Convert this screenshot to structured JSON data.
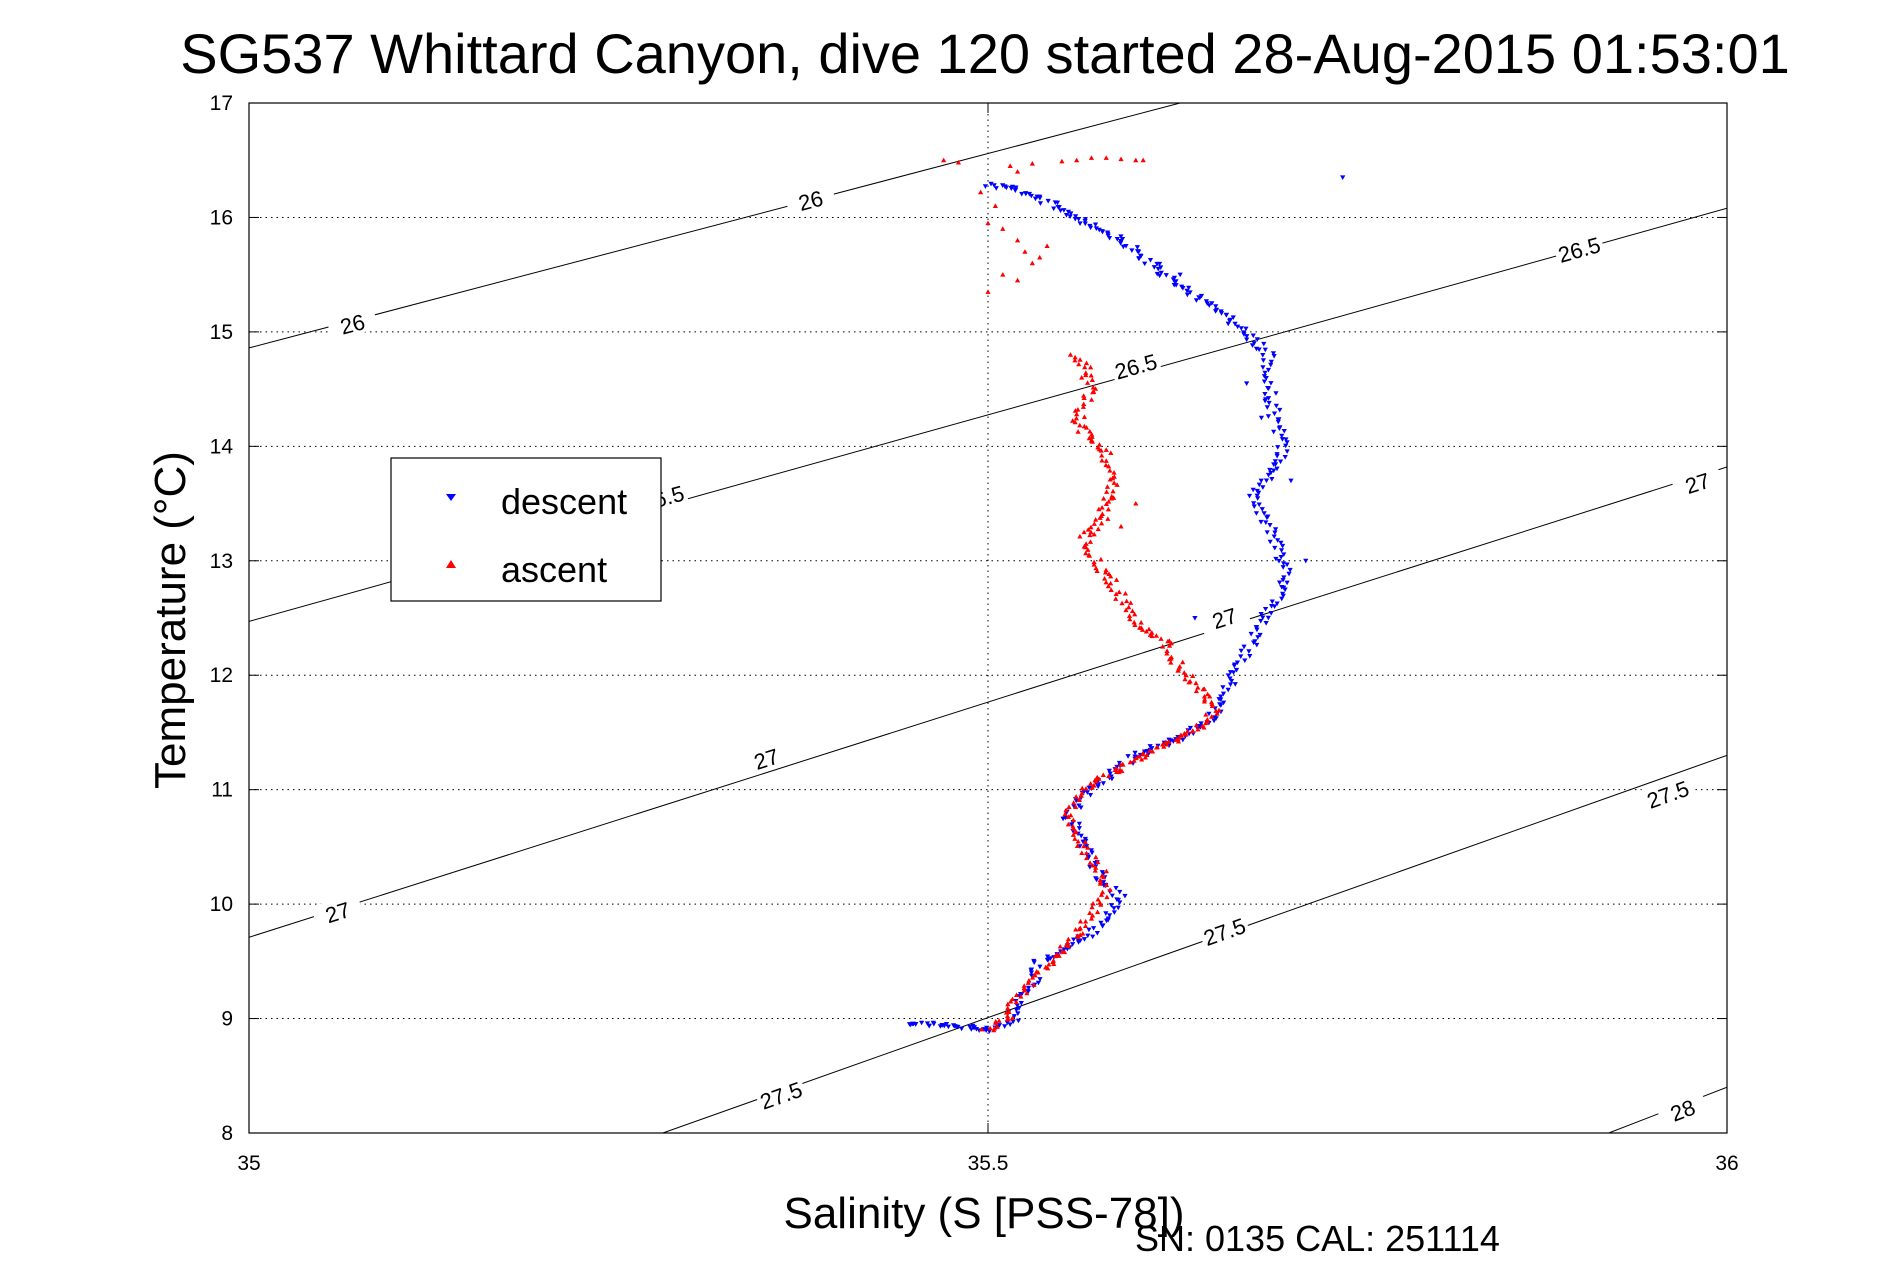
{
  "chart_data": {
    "type": "scatter",
    "title": "SG537 Whittard Canyon, dive 120 started 28-Aug-2015 01:53:01",
    "xlabel": "Salinity (S [PSS-78])",
    "ylabel": "Temperature (°C)",
    "xlim": [
      35,
      36
    ],
    "ylim": [
      8,
      17
    ],
    "x_ticks": [
      "35",
      "35.5",
      "36"
    ],
    "y_ticks": [
      "8",
      "9",
      "10",
      "11",
      "12",
      "13",
      "14",
      "15",
      "16",
      "17"
    ],
    "grid": true,
    "legend_position": "left-middle",
    "footer": "SN: 0135  CAL: 251114",
    "contours": [
      {
        "label": "26",
        "x": [
          35.0,
          35.63
        ],
        "y": [
          14.86,
          17.0
        ],
        "labels_at": [
          [
            35.07,
            15.07
          ],
          [
            35.38,
            16.15
          ]
        ]
      },
      {
        "label": "26.5",
        "x": [
          35.0,
          36.0
        ],
        "y": [
          12.47,
          16.08
        ],
        "labels_at": [
          [
            35.28,
            13.55
          ],
          [
            35.6,
            14.7
          ],
          [
            35.9,
            15.72
          ]
        ]
      },
      {
        "label": "27",
        "x": [
          35.0,
          36.0
        ],
        "y": [
          9.71,
          13.82
        ],
        "labels_at": [
          [
            35.06,
            9.93
          ],
          [
            35.35,
            11.27
          ],
          [
            35.66,
            12.5
          ],
          [
            35.98,
            13.68
          ]
        ]
      },
      {
        "label": "27.5",
        "x": [
          35.28,
          36.0
        ],
        "y": [
          8.0,
          11.3
        ],
        "labels_at": [
          [
            35.36,
            8.33
          ],
          [
            35.66,
            9.76
          ],
          [
            35.96,
            10.96
          ]
        ]
      },
      {
        "label": "28",
        "x": [
          35.92,
          36.0
        ],
        "y": [
          8.0,
          8.4
        ],
        "labels_at": [
          [
            35.97,
            8.2
          ]
        ]
      }
    ],
    "series": [
      {
        "name": "descent",
        "color": "#0000ff",
        "marker": "triangle-down",
        "anchors": [
          [
            35.445,
            8.96
          ],
          [
            35.46,
            8.95
          ],
          [
            35.48,
            8.93
          ],
          [
            35.5,
            8.9
          ],
          [
            35.515,
            8.95
          ],
          [
            35.52,
            9.15
          ],
          [
            35.53,
            9.3
          ],
          [
            35.535,
            9.5
          ],
          [
            35.55,
            9.6
          ],
          [
            35.57,
            9.75
          ],
          [
            35.58,
            9.88
          ],
          [
            35.59,
            10.05
          ],
          [
            35.575,
            10.25
          ],
          [
            35.565,
            10.5
          ],
          [
            35.555,
            10.75
          ],
          [
            35.565,
            10.95
          ],
          [
            35.58,
            11.1
          ],
          [
            35.6,
            11.3
          ],
          [
            35.63,
            11.45
          ],
          [
            35.65,
            11.6
          ],
          [
            35.66,
            11.78
          ],
          [
            35.665,
            11.95
          ],
          [
            35.67,
            12.1
          ],
          [
            35.68,
            12.3
          ],
          [
            35.69,
            12.55
          ],
          [
            35.7,
            12.8
          ],
          [
            35.7,
            13.0
          ],
          [
            35.69,
            13.3
          ],
          [
            35.68,
            13.6
          ],
          [
            35.7,
            13.9
          ],
          [
            35.695,
            14.2
          ],
          [
            35.69,
            14.5
          ],
          [
            35.69,
            14.8
          ],
          [
            35.665,
            15.1
          ],
          [
            35.62,
            15.5
          ],
          [
            35.59,
            15.8
          ],
          [
            35.56,
            16.0
          ],
          [
            35.53,
            16.2
          ],
          [
            35.515,
            16.26
          ],
          [
            35.5,
            16.29
          ]
        ],
        "extra": [
          [
            35.74,
            16.35
          ],
          [
            35.63,
            15.5
          ],
          [
            35.715,
            13.0
          ],
          [
            35.705,
            13.7
          ],
          [
            35.685,
            14.25
          ],
          [
            35.675,
            14.55
          ],
          [
            35.64,
            12.5
          ]
        ]
      },
      {
        "name": "ascent",
        "color": "#ff0000",
        "marker": "triangle-up",
        "anchors": [
          [
            35.5,
            8.9
          ],
          [
            35.515,
            9.0
          ],
          [
            35.52,
            9.2
          ],
          [
            35.535,
            9.4
          ],
          [
            35.55,
            9.6
          ],
          [
            35.565,
            9.8
          ],
          [
            35.575,
            10.0
          ],
          [
            35.58,
            10.2
          ],
          [
            35.57,
            10.4
          ],
          [
            35.56,
            10.6
          ],
          [
            35.555,
            10.8
          ],
          [
            35.565,
            11.0
          ],
          [
            35.59,
            11.2
          ],
          [
            35.62,
            11.4
          ],
          [
            35.645,
            11.55
          ],
          [
            35.655,
            11.7
          ],
          [
            35.645,
            11.85
          ],
          [
            35.635,
            12.0
          ],
          [
            35.625,
            12.15
          ],
          [
            35.62,
            12.3
          ],
          [
            35.6,
            12.45
          ],
          [
            35.59,
            12.7
          ],
          [
            35.575,
            12.95
          ],
          [
            35.565,
            13.2
          ],
          [
            35.58,
            13.4
          ],
          [
            35.585,
            13.7
          ],
          [
            35.58,
            13.95
          ],
          [
            35.56,
            14.2
          ],
          [
            35.57,
            14.5
          ],
          [
            35.565,
            14.7
          ],
          [
            35.555,
            14.8
          ]
        ],
        "extra": [
          [
            35.47,
            16.5
          ],
          [
            35.48,
            16.48
          ],
          [
            35.52,
            16.4
          ],
          [
            35.515,
            16.45
          ],
          [
            35.53,
            16.47
          ],
          [
            35.55,
            16.49
          ],
          [
            35.56,
            16.5
          ],
          [
            35.57,
            16.52
          ],
          [
            35.58,
            16.52
          ],
          [
            35.59,
            16.51
          ],
          [
            35.6,
            16.5
          ],
          [
            35.605,
            16.5
          ],
          [
            35.495,
            16.22
          ],
          [
            35.505,
            16.1
          ],
          [
            35.51,
            15.9
          ],
          [
            35.52,
            15.8
          ],
          [
            35.53,
            15.6
          ],
          [
            35.525,
            15.7
          ],
          [
            35.51,
            15.5
          ],
          [
            35.5,
            15.35
          ],
          [
            35.52,
            15.45
          ],
          [
            35.54,
            15.75
          ],
          [
            35.5,
            15.95
          ],
          [
            35.535,
            15.65
          ],
          [
            35.575,
            13.45
          ],
          [
            35.565,
            13.25
          ],
          [
            35.59,
            13.3
          ],
          [
            35.6,
            13.5
          ],
          [
            35.585,
            13.55
          ],
          [
            35.57,
            14.05
          ]
        ]
      }
    ]
  }
}
